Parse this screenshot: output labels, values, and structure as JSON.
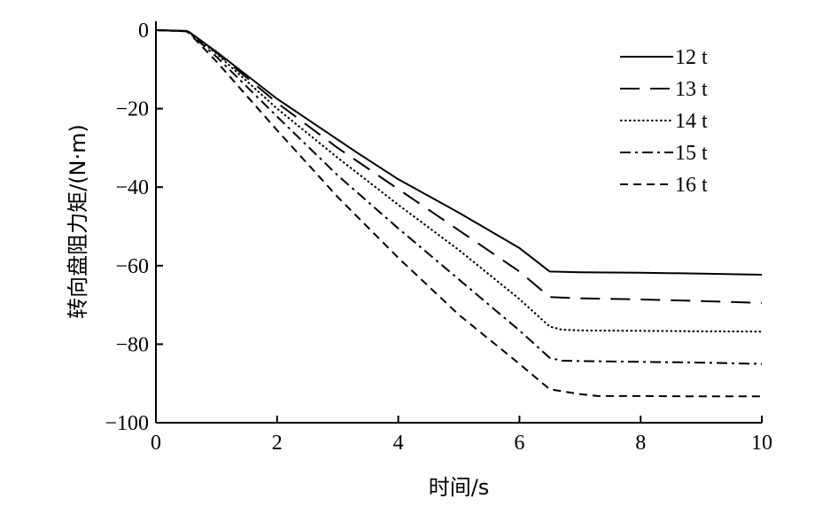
{
  "chart_data": {
    "type": "line",
    "title": "",
    "xlabel": "时间/s",
    "ylabel": "转向盘阻力矩/(N·m)",
    "xlim": [
      0,
      10
    ],
    "ylim": [
      -100,
      0
    ],
    "xticks": [
      0,
      2,
      4,
      6,
      8,
      10
    ],
    "yticks": [
      0,
      -20,
      -40,
      -60,
      -80,
      -100
    ],
    "xtick_labels": [
      "0",
      "2",
      "4",
      "6",
      "8",
      "10"
    ],
    "ytick_labels": [
      "0",
      "−20",
      "−40",
      "−60",
      "−80",
      "−100"
    ],
    "grid": false,
    "legend_position": "top-right",
    "series": [
      {
        "name": "12 t",
        "dash": "solid",
        "x": [
          0,
          0.5,
          0.55,
          1.0,
          2.0,
          3.3,
          4.0,
          5.0,
          6.0,
          6.5,
          7.0,
          8.0,
          9.0,
          10.0
        ],
        "y": [
          0,
          -0.2,
          -0.5,
          -5.5,
          -17.5,
          -31.0,
          -38.0,
          -46.5,
          -55.5,
          -61.5,
          -61.7,
          -61.8,
          -62.0,
          -62.3
        ]
      },
      {
        "name": "13 t",
        "dash": "long-dash",
        "x": [
          0,
          0.5,
          0.55,
          1.0,
          2.0,
          3.0,
          4.0,
          5.0,
          6.0,
          6.5,
          7.0,
          8.0,
          9.0,
          10.0
        ],
        "y": [
          0,
          -0.2,
          -0.5,
          -5.7,
          -18.5,
          -30.0,
          -40.5,
          -51.0,
          -61.5,
          -68.0,
          -68.3,
          -68.6,
          -69.0,
          -69.5
        ]
      },
      {
        "name": "14 t",
        "dash": "dotted",
        "x": [
          0,
          0.5,
          0.55,
          1.0,
          2.0,
          3.0,
          4.0,
          5.0,
          6.0,
          6.5,
          6.7,
          7.0,
          8.0,
          9.0,
          10.0
        ],
        "y": [
          0,
          -0.2,
          -0.5,
          -6.0,
          -20.0,
          -32.5,
          -44.5,
          -56.0,
          -68.5,
          -75.5,
          -76.3,
          -76.5,
          -76.6,
          -76.7,
          -76.8
        ]
      },
      {
        "name": "15 t",
        "dash": "dash-dot",
        "x": [
          0,
          0.5,
          0.55,
          1.0,
          2.0,
          3.0,
          4.0,
          5.0,
          6.0,
          6.5,
          6.7,
          7.0,
          8.0,
          9.0,
          10.0
        ],
        "y": [
          0,
          -0.3,
          -0.7,
          -6.8,
          -22.0,
          -37.0,
          -50.5,
          -63.5,
          -76.5,
          -83.5,
          -84.2,
          -84.3,
          -84.5,
          -84.7,
          -85.0
        ]
      },
      {
        "name": "16 t",
        "dash": "short-dash",
        "x": [
          0,
          0.5,
          0.55,
          1.0,
          2.0,
          3.0,
          4.0,
          5.0,
          6.0,
          6.5,
          7.0,
          7.3,
          8.0,
          9.0,
          10.0
        ],
        "y": [
          0,
          -0.3,
          -0.8,
          -8.0,
          -25.5,
          -42.5,
          -58.0,
          -72.5,
          -85.0,
          -91.5,
          -92.7,
          -93.2,
          -93.2,
          -93.3,
          -93.3
        ]
      }
    ]
  }
}
